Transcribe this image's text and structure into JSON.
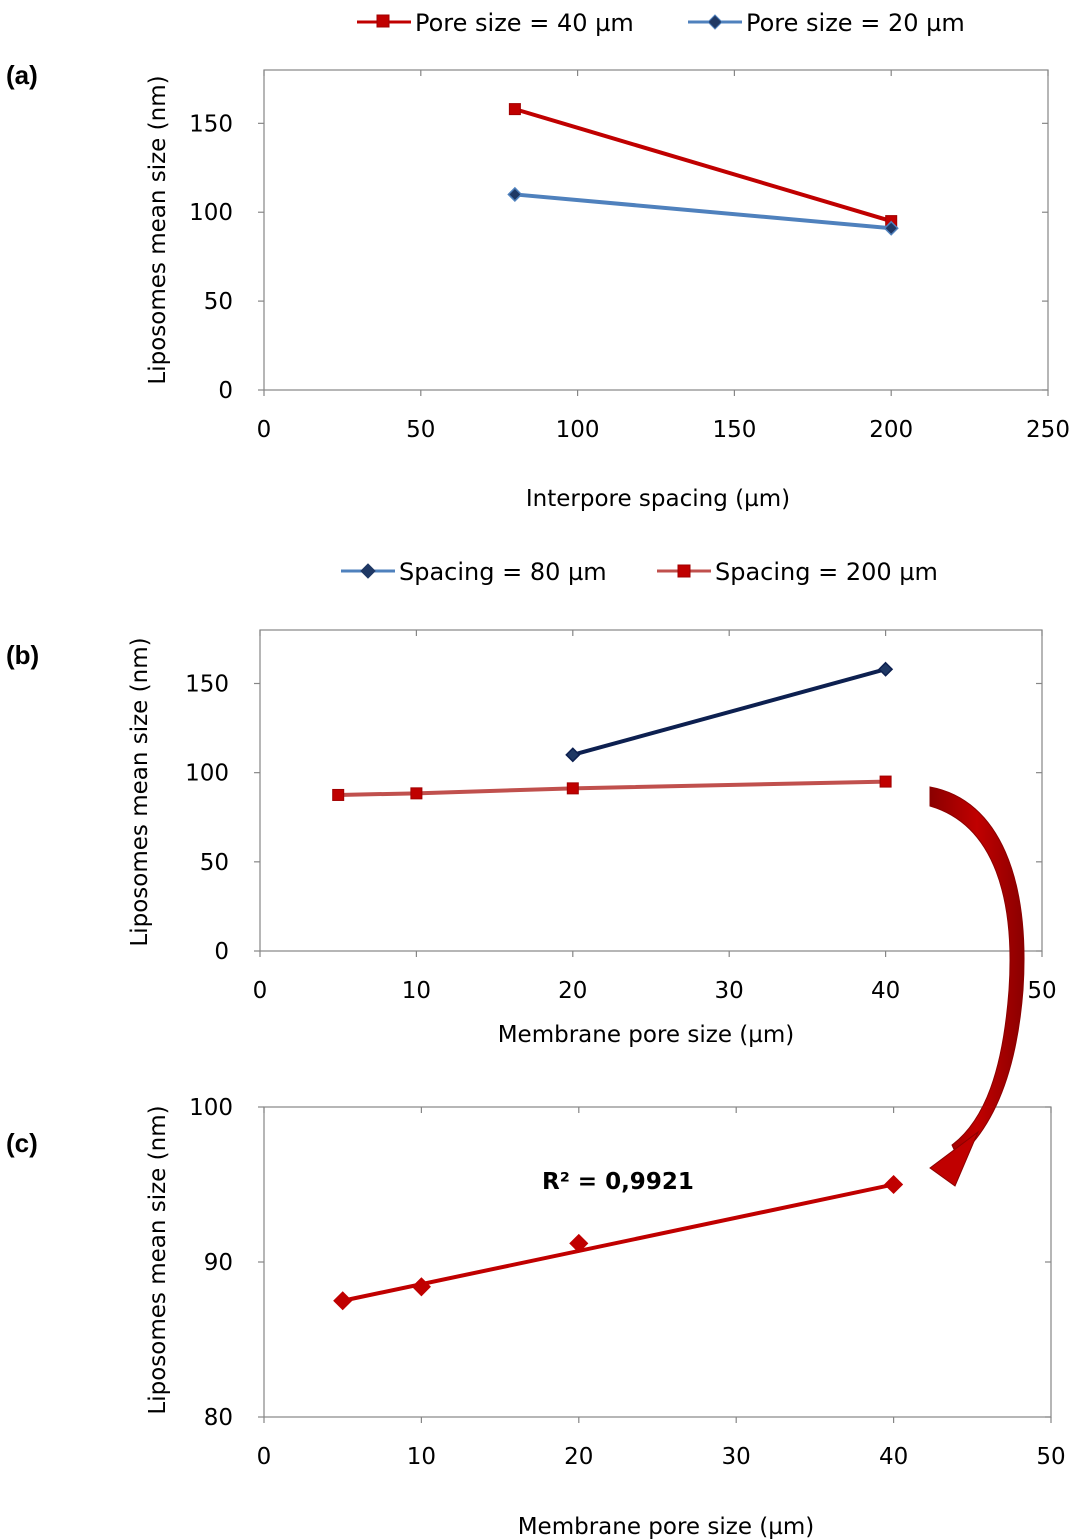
{
  "chart_data": [
    {
      "panel_label": "(a)",
      "type": "line",
      "xlabel": "Interpore spacing (µm)",
      "ylabel": "Liposomes mean size (nm)",
      "xlim": [
        0,
        250
      ],
      "ylim": [
        0,
        180
      ],
      "xticks": [
        0,
        50,
        100,
        150,
        200,
        250
      ],
      "yticks": [
        0,
        50,
        100,
        150
      ],
      "grid": false,
      "legend_position": "top",
      "series": [
        {
          "name": "Pore size = 40 µm",
          "marker": "square",
          "color": "#c00000",
          "x": [
            80,
            200
          ],
          "y": [
            158,
            95
          ]
        },
        {
          "name": "Pore size = 20 µm",
          "marker": "diamond",
          "color": "#1f3864",
          "line_color": "#4f81bd",
          "x": [
            80,
            200
          ],
          "y": [
            110,
            91
          ]
        }
      ]
    },
    {
      "panel_label": "(b)",
      "type": "line",
      "xlabel": "Membrane pore size (µm)",
      "ylabel": "Liposomes mean size (nm)",
      "xlim": [
        0,
        50
      ],
      "ylim": [
        0,
        180
      ],
      "xticks": [
        0,
        10,
        20,
        30,
        40,
        50
      ],
      "yticks": [
        0,
        50,
        100,
        150
      ],
      "grid": false,
      "legend_position": "top",
      "series": [
        {
          "name": "Spacing = 80 µm",
          "marker": "diamond",
          "color": "#1f3864",
          "line_color": "#0d2050",
          "x": [
            20,
            40
          ],
          "y": [
            110,
            158
          ]
        },
        {
          "name": "Spacing = 200 µm",
          "marker": "square",
          "color": "#c00000",
          "line_color": "#c0504d",
          "x": [
            5,
            10,
            20,
            40
          ],
          "y": [
            87.5,
            88.4,
            91.2,
            95
          ]
        }
      ]
    },
    {
      "panel_label": "(c)",
      "type": "scatter",
      "xlabel": "Membrane pore size (µm)",
      "ylabel": "Liposomes mean size (nm)",
      "xlim": [
        0,
        50
      ],
      "ylim": [
        80,
        100
      ],
      "xticks": [
        0,
        10,
        20,
        30,
        40,
        50
      ],
      "yticks": [
        80,
        90,
        100
      ],
      "grid": false,
      "annotation": "R² = 0,9921",
      "series": [
        {
          "marker": "diamond",
          "color": "#c00000",
          "x": [
            5,
            10,
            20,
            40
          ],
          "y": [
            87.5,
            88.4,
            91.2,
            95
          ]
        }
      ],
      "trendline": {
        "color": "#c00000",
        "x": [
          5,
          40
        ],
        "y": [
          87.5,
          95
        ]
      }
    }
  ]
}
